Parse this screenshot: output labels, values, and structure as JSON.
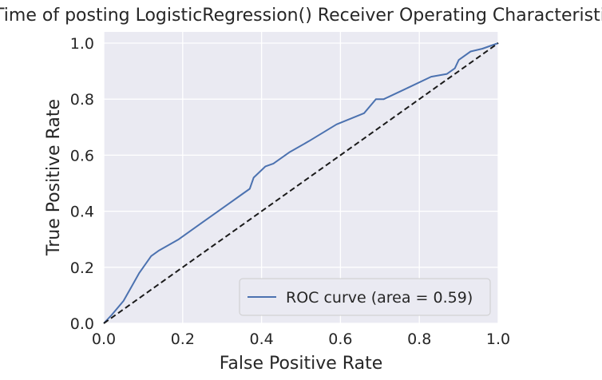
{
  "chart_data": {
    "type": "line",
    "title": "Time of posting LogisticRegression() Receiver Operating Characteristic",
    "xlabel": "False Positive Rate",
    "ylabel": "True Positive Rate",
    "xlim": [
      0.0,
      1.0
    ],
    "ylim": [
      0.0,
      1.0
    ],
    "xticks": [
      "0.0",
      "0.2",
      "0.4",
      "0.6",
      "0.8",
      "1.0"
    ],
    "yticks": [
      "0.0",
      "0.2",
      "0.4",
      "0.6",
      "0.8",
      "1.0"
    ],
    "grid": true,
    "legend_position": "lower-right",
    "series": [
      {
        "name": "ROC curve (area = 0.59)",
        "color": "#4c72b0",
        "style": "solid",
        "x": [
          0.0,
          0.02,
          0.05,
          0.07,
          0.09,
          0.12,
          0.14,
          0.19,
          0.25,
          0.3,
          0.35,
          0.37,
          0.38,
          0.41,
          0.43,
          0.47,
          0.52,
          0.59,
          0.66,
          0.69,
          0.71,
          0.77,
          0.83,
          0.87,
          0.89,
          0.9,
          0.93,
          0.96,
          1.0
        ],
        "y": [
          0.0,
          0.03,
          0.08,
          0.13,
          0.18,
          0.24,
          0.26,
          0.3,
          0.36,
          0.41,
          0.46,
          0.48,
          0.52,
          0.56,
          0.57,
          0.61,
          0.65,
          0.71,
          0.75,
          0.8,
          0.8,
          0.84,
          0.88,
          0.89,
          0.91,
          0.94,
          0.97,
          0.98,
          1.0
        ]
      },
      {
        "color": "#1a1a1a",
        "style": "dashed",
        "x": [
          0.0,
          1.0
        ],
        "y": [
          0.0,
          1.0
        ]
      }
    ]
  }
}
